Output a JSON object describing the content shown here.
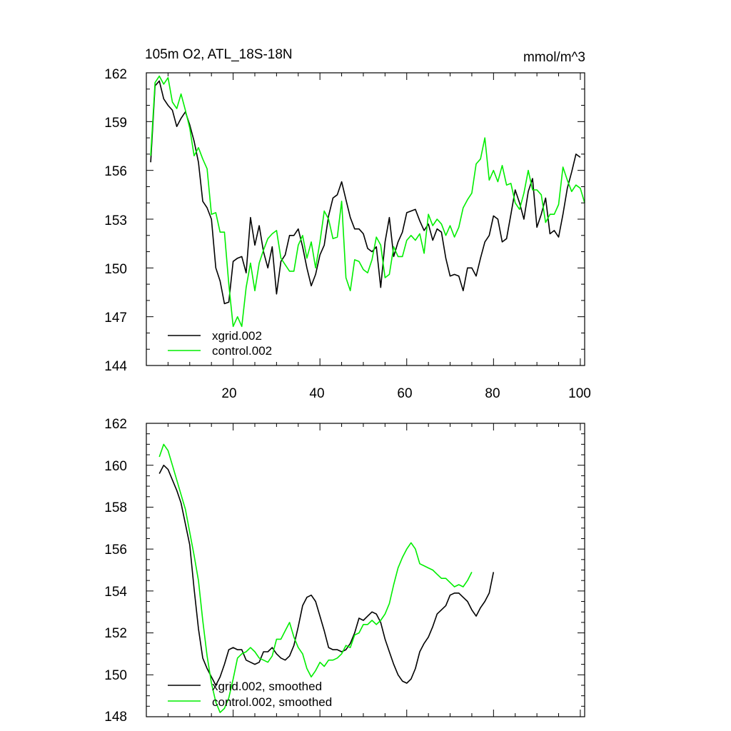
{
  "chart_data": [
    {
      "type": "line",
      "title": "105m O2, ATL_18S-18N",
      "units": "mmol/m^3",
      "xlim": [
        0,
        101
      ],
      "ylim": [
        144,
        162
      ],
      "x_tick_labels": [
        "20",
        "40",
        "60",
        "80",
        "100"
      ],
      "y_tick_labels": [
        "144",
        "147",
        "150",
        "153",
        "156",
        "159",
        "162"
      ],
      "legend_position": "bottom-left",
      "series": [
        {
          "name": "xgrid.002",
          "color": "#000000",
          "x_start": 1,
          "values": [
            156.5,
            161.2,
            161.5,
            160.4,
            160.0,
            159.7,
            158.7,
            159.2,
            159.6,
            158.8,
            157.8,
            156.5,
            154.1,
            153.7,
            153.0,
            150.0,
            149.2,
            147.8,
            147.9,
            150.4,
            150.6,
            150.7,
            149.7,
            153.1,
            151.4,
            152.6,
            151.0,
            150.0,
            151.3,
            148.4,
            150.4,
            150.8,
            152.0,
            152.0,
            152.4,
            151.3,
            150.0,
            148.9,
            149.6,
            150.8,
            151.4,
            153.2,
            154.3,
            154.5,
            155.3,
            154.2,
            153.1,
            152.4,
            152.4,
            152.1,
            151.2,
            151.0,
            151.3,
            148.8,
            151.6,
            153.1,
            150.7,
            151.6,
            152.2,
            153.4,
            153.5,
            153.6,
            152.9,
            152.3,
            152.7,
            151.7,
            152.4,
            152.2,
            150.6,
            149.5,
            149.6,
            149.5,
            148.6,
            150.0,
            150.0,
            149.5,
            150.6,
            151.6,
            152.0,
            153.2,
            153.0,
            151.6,
            151.8,
            153.3,
            154.8,
            154.0,
            153.0,
            154.7,
            155.5,
            152.5,
            153.3,
            154.3,
            152.1,
            152.3,
            151.9,
            153.3,
            154.9,
            155.9,
            157.0,
            156.8
          ]
        },
        {
          "name": "control.002",
          "color": "#00ee00",
          "x_start": 1,
          "values": [
            156.9,
            161.4,
            161.8,
            161.3,
            161.7,
            160.2,
            159.8,
            160.7,
            159.7,
            158.6,
            156.9,
            157.4,
            156.7,
            156.1,
            153.3,
            153.4,
            152.2,
            152.2,
            149.0,
            146.4,
            147.0,
            146.4,
            148.8,
            150.3,
            148.6,
            150.3,
            151.1,
            151.8,
            152.1,
            152.3,
            150.6,
            150.2,
            149.8,
            149.8,
            151.4,
            152.0,
            150.6,
            151.6,
            150.0,
            151.6,
            153.5,
            153.0,
            151.8,
            151.9,
            154.1,
            149.4,
            148.6,
            150.5,
            150.4,
            149.9,
            149.7,
            150.5,
            151.9,
            151.4,
            149.4,
            149.6,
            151.3,
            150.7,
            150.7,
            151.7,
            152.0,
            151.7,
            152.1,
            150.9,
            153.3,
            152.6,
            153.0,
            152.7,
            152.0,
            152.6,
            151.9,
            152.5,
            153.7,
            154.2,
            154.6,
            156.4,
            156.7,
            158.0,
            155.4,
            156.0,
            155.3,
            156.3,
            155.1,
            155.2,
            154.0,
            153.6,
            154.6,
            156.0,
            154.8,
            154.8,
            154.5,
            152.8,
            153.3,
            153.3,
            153.9,
            156.2,
            155.4,
            154.7,
            155.1,
            154.9,
            154.0
          ]
        }
      ]
    },
    {
      "type": "line",
      "xlim": [
        0,
        101
      ],
      "ylim": [
        148,
        162
      ],
      "y_tick_labels": [
        "148",
        "150",
        "152",
        "154",
        "156",
        "158",
        "160",
        "162"
      ],
      "legend_position": "bottom-left",
      "series": [
        {
          "name": "xgrid.002, smoothed",
          "color": "#000000",
          "x_start": 3,
          "values": [
            159.6,
            160.0,
            159.8,
            159.3,
            158.8,
            158.2,
            157.2,
            156.2,
            154.1,
            152.2,
            150.8,
            150.3,
            149.9,
            149.5,
            149.9,
            150.5,
            151.2,
            151.3,
            151.2,
            151.2,
            150.7,
            150.6,
            150.5,
            150.6,
            151.1,
            151.1,
            151.3,
            151.0,
            150.8,
            150.7,
            150.9,
            151.4,
            152.3,
            153.3,
            153.7,
            153.8,
            153.5,
            152.8,
            152.1,
            151.3,
            151.2,
            151.2,
            151.1,
            151.2,
            151.5,
            152.0,
            152.7,
            152.6,
            152.8,
            153.0,
            152.9,
            152.5,
            151.7,
            151.1,
            150.5,
            150.0,
            149.7,
            149.6,
            149.8,
            150.3,
            151.1,
            151.5,
            151.8,
            152.3,
            152.9,
            153.1,
            153.3,
            153.8,
            153.9,
            153.9,
            153.7,
            153.5,
            153.1,
            152.8,
            153.2,
            153.5,
            153.9,
            154.9
          ]
        },
        {
          "name": "control.002, smoothed",
          "color": "#00ee00",
          "x_start": 3,
          "values": [
            160.4,
            161.0,
            160.7,
            160.0,
            159.3,
            158.6,
            157.9,
            156.8,
            155.7,
            154.5,
            152.6,
            150.9,
            149.6,
            148.7,
            148.2,
            148.4,
            148.9,
            149.8,
            150.8,
            151.0,
            151.1,
            151.3,
            151.1,
            150.8,
            150.7,
            150.6,
            150.9,
            151.7,
            151.7,
            152.1,
            152.5,
            151.8,
            151.3,
            151.0,
            150.3,
            149.9,
            150.2,
            150.6,
            150.4,
            150.7,
            150.7,
            150.8,
            151.0,
            151.4,
            151.3,
            151.9,
            152.0,
            152.4,
            152.4,
            152.6,
            152.4,
            152.6,
            152.9,
            153.4,
            154.3,
            155.1,
            155.6,
            156.0,
            156.3,
            156.0,
            155.3,
            155.2,
            155.1,
            155.0,
            154.8,
            154.6,
            154.6,
            154.4,
            154.2,
            154.3,
            154.2,
            154.5,
            154.9
          ]
        }
      ]
    }
  ]
}
